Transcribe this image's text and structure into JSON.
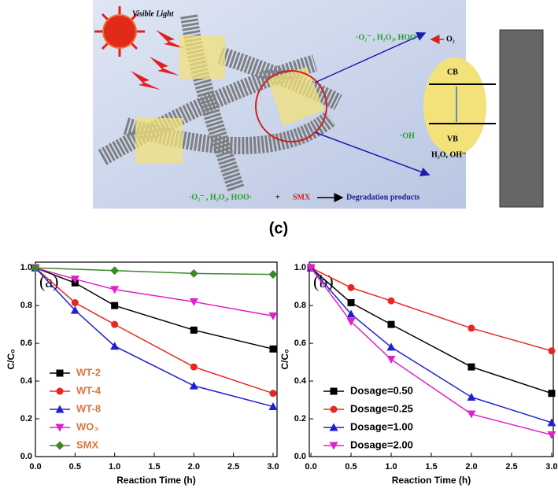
{
  "illustration": {
    "light": "Visible Light",
    "species_top": "·O₂⁻ , H₂O₂, HOO·",
    "oxygen": "O₂",
    "cb": "CB",
    "vb": "VB",
    "hydroxyl": "·OH",
    "water": "H₂O, OH⁻",
    "species_bottom": "·O₂⁻ , H₂O₂, HOO·",
    "plus": "+",
    "pollutant": "SMX",
    "products": "Degradation products"
  },
  "panel_label": "(c)",
  "chart_data": [
    {
      "type": "line",
      "panel": "(a)",
      "x_label": "Reaction Time (h)",
      "y_label": "C/C₀",
      "xlim": [
        0,
        3.05
      ],
      "ylim": [
        0,
        1.03
      ],
      "xticks": [
        {
          "value": 0,
          "label": "0.0"
        },
        0.5,
        {
          "value": 1,
          "label": "1.0"
        },
        1.5,
        {
          "value": 2,
          "label": "2.0"
        },
        2.5,
        {
          "value": 3,
          "label": "3.0"
        }
      ],
      "yticks": [
        {
          "value": 0,
          "label": "0.0"
        },
        0.2,
        0.4,
        0.6,
        0.8,
        {
          "value": 1,
          "label": "1.0"
        }
      ],
      "legend": "lower left",
      "legend_text_color": "#d9773a",
      "series": [
        {
          "name": "WT-2",
          "color": "#000000",
          "marker": "square",
          "x": [
            0,
            0.5,
            1,
            2,
            3
          ],
          "values": [
            1.0,
            0.92,
            0.8,
            0.67,
            0.57
          ]
        },
        {
          "name": "WT-4",
          "color": "#e8281e",
          "marker": "circle",
          "x": [
            0,
            0.5,
            1,
            2,
            3
          ],
          "values": [
            1.0,
            0.815,
            0.7,
            0.475,
            0.335
          ]
        },
        {
          "name": "WT-8",
          "color": "#1f1fd6",
          "marker": "triangle-up",
          "x": [
            0,
            0.5,
            1,
            2,
            3
          ],
          "values": [
            1.0,
            0.775,
            0.585,
            0.375,
            0.265
          ]
        },
        {
          "name": "WO₃",
          "color": "#e020c8",
          "marker": "triangle-down",
          "x": [
            0,
            0.5,
            1,
            2,
            3
          ],
          "values": [
            1.0,
            0.94,
            0.885,
            0.82,
            0.745
          ]
        },
        {
          "name": "SMX",
          "color": "#3a8a2a",
          "marker": "diamond",
          "x": [
            0,
            1,
            2,
            3
          ],
          "values": [
            1.0,
            0.985,
            0.97,
            0.965
          ]
        }
      ]
    },
    {
      "type": "line",
      "panel": "(b)",
      "x_label": "Reaction Time (h)",
      "y_label": "C/C₀",
      "xlim": [
        -0.02,
        3.02
      ],
      "ylim": [
        0,
        1.03
      ],
      "xticks": [
        {
          "value": 0,
          "label": "0.0"
        },
        0.5,
        {
          "value": 1,
          "label": "1.0"
        },
        1.5,
        {
          "value": 2,
          "label": "2.0"
        },
        2.5,
        {
          "value": 3,
          "label": "3.0"
        }
      ],
      "yticks": [
        {
          "value": 0,
          "label": "0.0"
        },
        0.2,
        0.4,
        0.6,
        0.8,
        {
          "value": 1,
          "label": "1.0"
        }
      ],
      "legend": "lower left",
      "legend_text_color": "#000000",
      "series": [
        {
          "name": "Dosage=0.50",
          "color": "#000000",
          "marker": "square",
          "x": [
            0,
            0.5,
            1,
            2,
            3
          ],
          "values": [
            1.0,
            0.815,
            0.7,
            0.475,
            0.335
          ]
        },
        {
          "name": "Dosage=0.25",
          "color": "#e8281e",
          "marker": "circle",
          "x": [
            0,
            0.5,
            1,
            2,
            3
          ],
          "values": [
            1.0,
            0.895,
            0.825,
            0.68,
            0.56
          ]
        },
        {
          "name": "Dosage=1.00",
          "color": "#1f1fd6",
          "marker": "triangle-up",
          "x": [
            0,
            0.5,
            1,
            2,
            3
          ],
          "values": [
            1.0,
            0.755,
            0.58,
            0.315,
            0.18
          ]
        },
        {
          "name": "Dosage=2.00",
          "color": "#e020c8",
          "marker": "triangle-down",
          "x": [
            0,
            0.5,
            1,
            2,
            3
          ],
          "values": [
            1.0,
            0.715,
            0.515,
            0.225,
            0.115
          ]
        }
      ]
    }
  ]
}
